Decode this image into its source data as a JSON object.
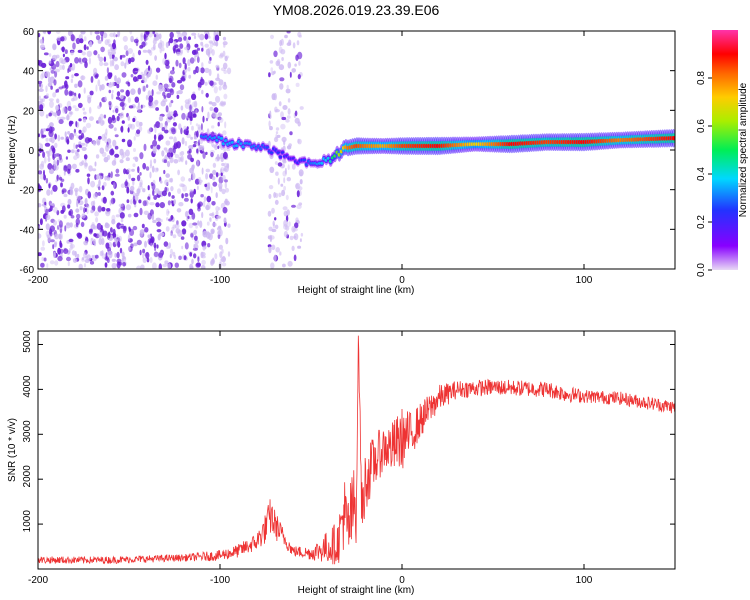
{
  "title": "YM08.2026.019.23.39.E06",
  "colors": {
    "trace": "#ee3333",
    "scatter_dark": "#6a1fd8",
    "scatter_light": "#cdb8f2",
    "axis": "#000000"
  },
  "chart_data": [
    {
      "type": "heatmap",
      "title": "YM08.2026.019.23.39.E06",
      "xlabel": "Height of straight line (km)",
      "ylabel": "Frequency (Hz)",
      "xlim": [
        -200,
        150
      ],
      "ylim": [
        -60,
        60
      ],
      "xticks": [
        -200,
        -100,
        0,
        100
      ],
      "yticks": [
        -60,
        -40,
        -20,
        0,
        20,
        40,
        60
      ],
      "colorbar": {
        "label": "Normalized spectral amplitude",
        "range": [
          0.0,
          1.0
        ],
        "ticks": [
          0.0,
          0.2,
          0.4,
          0.6,
          0.8
        ],
        "colormap": "rainbow (purple-blue-cyan-green-yellow-red-magenta)"
      },
      "ridge": {
        "name": "Dominant frequency ridge",
        "x": [
          -110,
          -100,
          -90,
          -80,
          -70,
          -60,
          -50,
          -40,
          -30,
          -25,
          -20,
          -10,
          0,
          20,
          40,
          60,
          80,
          100,
          120,
          150
        ],
        "y": [
          6,
          5,
          3,
          2,
          -1,
          -5,
          -7,
          -5,
          1,
          2,
          2,
          2,
          2,
          2,
          3,
          3,
          4,
          4,
          5,
          6
        ],
        "amplitude": [
          0.3,
          0.35,
          0.35,
          0.3,
          0.25,
          0.2,
          0.3,
          0.4,
          0.8,
          0.85,
          0.8,
          0.75,
          0.85,
          0.9,
          0.7,
          0.9,
          0.85,
          0.9,
          0.8,
          0.9
        ]
      },
      "noise_regions": [
        {
          "name": "broadband noise",
          "x_range": [
            -200,
            -95
          ],
          "y_range": [
            -60,
            60
          ],
          "amplitude": 0.1
        },
        {
          "name": "noise stripe",
          "x_range": [
            -73,
            -55
          ],
          "y_range": [
            -60,
            60
          ],
          "amplitude": 0.05
        }
      ]
    },
    {
      "type": "line",
      "xlabel": "Height of straight line (km)",
      "ylabel": "SNR (10 * v/v)",
      "xlim": [
        -200,
        150
      ],
      "ylim": [
        0,
        5300
      ],
      "xticks": [
        -200,
        -100,
        0,
        100
      ],
      "yticks": [
        1000,
        2000,
        3000,
        4000,
        5000
      ],
      "series": [
        {
          "name": "SNR",
          "x": [
            -200,
            -160,
            -120,
            -100,
            -90,
            -80,
            -75,
            -72,
            -70,
            -65,
            -60,
            -50,
            -40,
            -35,
            -32,
            -30,
            -25,
            -24,
            -22,
            -20,
            -15,
            -10,
            -5,
            0,
            5,
            10,
            20,
            30,
            50,
            80,
            90,
            100,
            120,
            150
          ],
          "y": [
            200,
            200,
            250,
            300,
            400,
            600,
            900,
            1200,
            1000,
            700,
            400,
            350,
            500,
            600,
            1300,
            800,
            1600,
            5200,
            1200,
            2000,
            2400,
            2700,
            2700,
            2900,
            3000,
            3300,
            3800,
            4000,
            4050,
            4000,
            3900,
            3850,
            3800,
            3600
          ],
          "noise": [
            80,
            80,
            80,
            120,
            150,
            200,
            350,
            450,
            350,
            200,
            120,
            150,
            400,
            500,
            900,
            900,
            1000,
            100,
            800,
            700,
            600,
            500,
            600,
            700,
            500,
            400,
            300,
            200,
            180,
            180,
            180,
            150,
            150,
            150
          ]
        }
      ]
    }
  ]
}
